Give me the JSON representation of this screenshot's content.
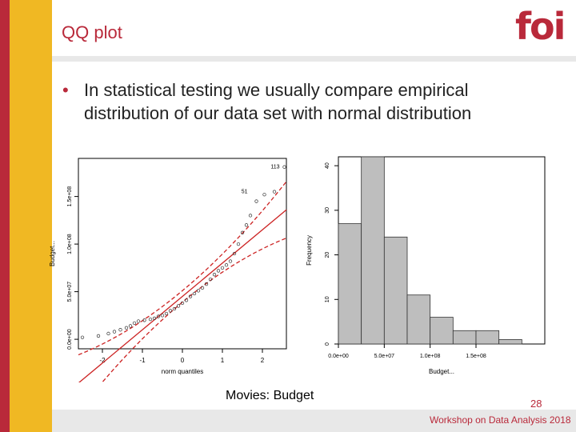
{
  "slide": {
    "title": "QQ plot",
    "logo": {
      "text_left": "f",
      "text_right": "i",
      "brand_red": "#b9293a",
      "brand_yellow": "#f0b823"
    },
    "bullet": "In statistical testing we usually compare empirical distribution of our data set with normal distribution",
    "caption": "Movies: Budget",
    "page_number": "28",
    "footer": "Workshop on Data Analysis 2018"
  },
  "chart_data": [
    {
      "type": "scatter",
      "xlabel": "norm quantiles",
      "ylabel": "Budget...",
      "x_ticks": [
        "-2",
        "-1",
        "0",
        "1",
        "2"
      ],
      "y_ticks": [
        "0.0e+00",
        "5.0e+07",
        "1.0e+08",
        "1.5e+08"
      ],
      "xlim": [
        -2.6,
        2.6
      ],
      "ylim": [
        -10000000,
        190000000
      ],
      "annotations": [
        {
          "text": "113",
          "x": 2.55,
          "y": 181000000
        },
        {
          "text": "51",
          "x": 1.75,
          "y": 155000000
        }
      ],
      "points": [
        [
          -2.5,
          2000000
        ],
        [
          -2.1,
          3500000
        ],
        [
          -1.85,
          6000000
        ],
        [
          -1.7,
          8000000
        ],
        [
          -1.55,
          10000000
        ],
        [
          -1.4,
          12000000
        ],
        [
          -1.3,
          14000000
        ],
        [
          -1.2,
          17000000
        ],
        [
          -1.1,
          19000000
        ],
        [
          -0.95,
          20000000
        ],
        [
          -0.8,
          21000000
        ],
        [
          -0.7,
          22000000
        ],
        [
          -0.6,
          24000000
        ],
        [
          -0.5,
          25000000
        ],
        [
          -0.4,
          27000000
        ],
        [
          -0.3,
          30000000
        ],
        [
          -0.2,
          32000000
        ],
        [
          -0.1,
          35000000
        ],
        [
          0.0,
          38000000
        ],
        [
          0.1,
          41000000
        ],
        [
          0.2,
          45000000
        ],
        [
          0.3,
          48000000
        ],
        [
          0.4,
          51000000
        ],
        [
          0.5,
          54000000
        ],
        [
          0.6,
          58000000
        ],
        [
          0.7,
          63000000
        ],
        [
          0.8,
          68000000
        ],
        [
          0.9,
          72000000
        ],
        [
          1.0,
          75000000
        ],
        [
          1.1,
          78000000
        ],
        [
          1.2,
          82000000
        ],
        [
          1.3,
          90000000
        ],
        [
          1.4,
          100000000
        ],
        [
          1.5,
          112000000
        ],
        [
          1.6,
          120000000
        ],
        [
          1.7,
          130000000
        ],
        [
          1.85,
          145000000
        ],
        [
          2.05,
          152000000
        ],
        [
          2.3,
          155000000
        ],
        [
          2.55,
          181000000
        ]
      ],
      "line_color": "#cc2222"
    },
    {
      "type": "bar",
      "xlabel": "Budget...",
      "ylabel": "Frequency",
      "x_ticks": [
        "0.0e+00",
        "5.0e+07",
        "1.0e+08",
        "1.5e+08"
      ],
      "y_ticks": [
        "0",
        "10",
        "20",
        "30",
        "40"
      ],
      "bins": [
        [
          0,
          25000000
        ],
        [
          25000000,
          50000000
        ],
        [
          50000000,
          75000000
        ],
        [
          75000000,
          100000000
        ],
        [
          100000000,
          125000000
        ],
        [
          125000000,
          150000000
        ],
        [
          150000000,
          175000000
        ],
        [
          175000000,
          200000000
        ],
        [
          200000000,
          225000000
        ]
      ],
      "values": [
        27,
        42,
        24,
        11,
        6,
        3,
        3,
        1,
        0
      ],
      "ylim": [
        0,
        42
      ],
      "bar_color": "#bebebe"
    }
  ]
}
